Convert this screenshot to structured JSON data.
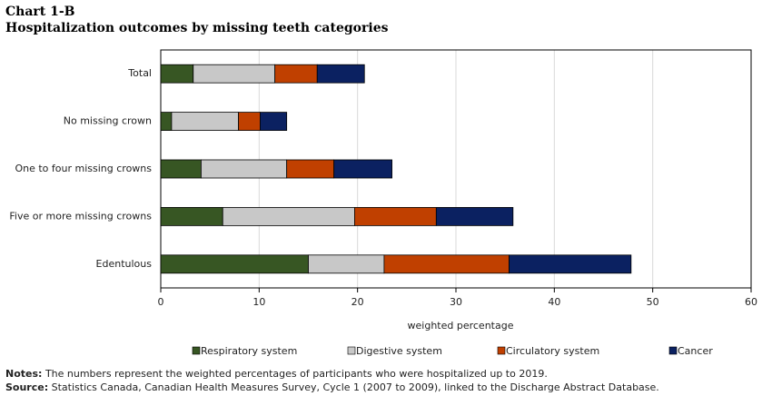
{
  "chart_data": {
    "type": "stacked-bar-horizontal",
    "label": "Chart 1-B",
    "title": "Hospitalization  outcomes by missing teeth categories",
    "categories": [
      "Total",
      "No missing crown",
      "One to four missing crowns",
      "Five or more missing crowns",
      "Edentulous"
    ],
    "series": [
      {
        "name": "Respiratory system",
        "color": "#375623",
        "values": [
          3.3,
          1.1,
          4.1,
          6.3,
          15.0
        ]
      },
      {
        "name": "Digestive system",
        "color": "#c8c8c8",
        "values": [
          8.3,
          6.8,
          8.7,
          13.4,
          7.7
        ]
      },
      {
        "name": "Circulatory system",
        "color": "#c04000",
        "values": [
          4.3,
          2.2,
          4.8,
          8.3,
          12.7
        ]
      },
      {
        "name": "Cancer",
        "color": "#0b2161",
        "values": [
          4.8,
          2.7,
          5.9,
          7.8,
          12.4
        ]
      }
    ],
    "xlabel": "weighted percentage",
    "xlim": [
      0,
      60
    ],
    "xticks": [
      0,
      10,
      20,
      30,
      40,
      50,
      60
    ],
    "grid": true,
    "notes": {
      "label": "Notes:",
      "text": "The numbers represent the weighted percentages of participants who were hospitalized up to 2019."
    },
    "source": {
      "label": "Source:",
      "text": "Statistics Canada, Canadian Health Measures Survey, Cycle 1 (2007 to 2009), linked to the Discharge Abstract Database."
    }
  }
}
